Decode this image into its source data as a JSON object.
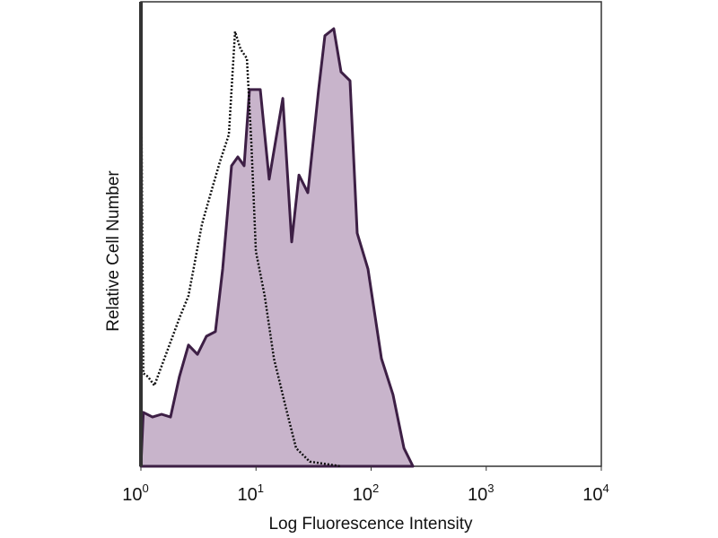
{
  "chart_data": {
    "type": "area",
    "title": "",
    "xlabel": "Log Fluorescence Intensity",
    "ylabel": "Relative Cell Number",
    "xscale": "log",
    "xlim": [
      1,
      10000
    ],
    "ylim": [
      0,
      100
    ],
    "xticks": [
      {
        "base": "10",
        "exp": "0"
      },
      {
        "base": "10",
        "exp": "1"
      },
      {
        "base": "10",
        "exp": "2"
      },
      {
        "base": "10",
        "exp": "3"
      },
      {
        "base": "10",
        "exp": "4"
      }
    ],
    "grid": false,
    "legend": "none",
    "series": [
      {
        "style": "filled",
        "fill_color": "#c8b4cb",
        "line_color": "#3d1f45",
        "x": [
          1.0,
          1.05,
          1.26,
          1.51,
          1.81,
          2.16,
          2.59,
          3.1,
          3.71,
          4.44,
          5.13,
          6.13,
          6.95,
          7.88,
          8.78,
          10.9,
          13.0,
          17.1,
          20.4,
          23.6,
          28.2,
          35.0,
          39.7,
          47.4,
          54.8,
          65.6,
          75.7,
          93.9,
          123,
          155,
          193,
          231
        ],
        "y": [
          0,
          11.6,
          10.6,
          11.2,
          10.6,
          19.3,
          26.1,
          24.1,
          28,
          29,
          42.5,
          64.7,
          66.6,
          64.7,
          81.1,
          81.1,
          61.8,
          79.2,
          48.3,
          62.7,
          58.9,
          81.1,
          92.7,
          94.2,
          84.9,
          83,
          50.2,
          42.5,
          23.2,
          15.4,
          3.9,
          0
        ]
      },
      {
        "style": "dotted",
        "line_color": "#111111",
        "x": [
          1.0,
          1.0,
          1.05,
          1.15,
          1.31,
          1.65,
          2.16,
          2.59,
          3.39,
          4.06,
          4.86,
          5.81,
          6.58,
          7.34,
          8.34,
          9.12,
          9.97,
          11.9,
          14.3,
          18.6,
          22.3,
          29.3,
          54.8
        ],
        "y": [
          0,
          93,
          20,
          19.3,
          17.4,
          24.1,
          31.9,
          36.7,
          52.1,
          58.9,
          65.6,
          71.4,
          93.6,
          89.8,
          87.8,
          69.5,
          46.3,
          36.7,
          23.2,
          11.6,
          3.9,
          1,
          0
        ]
      }
    ]
  }
}
